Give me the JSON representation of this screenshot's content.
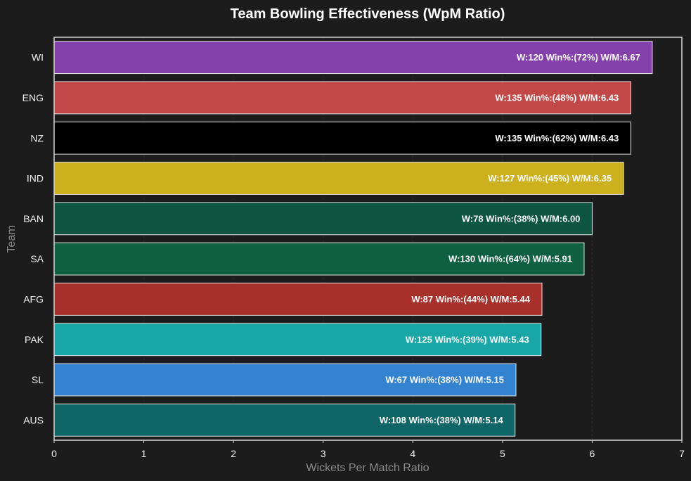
{
  "chart_data": {
    "type": "bar",
    "orientation": "horizontal",
    "title": "Team Bowling Effectiveness (WpM Ratio)",
    "xlabel": "Wickets Per Match Ratio",
    "ylabel": "Team",
    "xlim": [
      0,
      7
    ],
    "xticks": [
      "0",
      "1",
      "2",
      "3",
      "4",
      "5",
      "6",
      "7"
    ],
    "grid": true,
    "categories": [
      "WI",
      "ENG",
      "NZ",
      "IND",
      "BAN",
      "SA",
      "AFG",
      "PAK",
      "SL",
      "AUS"
    ],
    "values": [
      6.67,
      6.43,
      6.43,
      6.35,
      6.0,
      5.91,
      5.44,
      5.43,
      5.15,
      5.14
    ],
    "bar_labels": [
      "W:120 Win%:(72%) W/M:6.67",
      "W:135 Win%:(48%) W/M:6.43",
      "W:135 Win%:(62%) W/M:6.43",
      "W:127 Win%:(45%) W/M:6.35",
      "W:78 Win%:(38%) W/M:6.00",
      "W:130 Win%:(64%) W/M:5.91",
      "W:87 Win%:(44%) W/M:5.44",
      "W:125 Win%:(39%) W/M:5.43",
      "W:67 Win%:(38%) W/M:5.15",
      "W:108 Win%:(38%) W/M:5.14"
    ],
    "colors": [
      "#8441ab",
      "#c24747",
      "#000000",
      "#ccb01e",
      "#0f5641",
      "#0f5f43",
      "#a8302a",
      "#19a6a6",
      "#3383d0",
      "#106567"
    ]
  }
}
